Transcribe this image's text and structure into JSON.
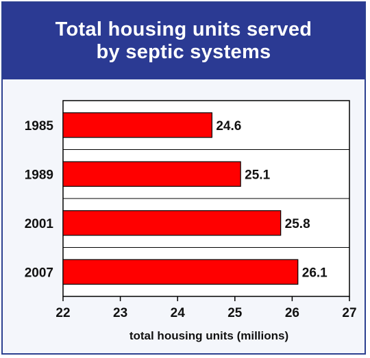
{
  "header": {
    "title_line1": "Total housing units served",
    "title_line2": "by septic systems"
  },
  "colors": {
    "header_bg": "#2b3a93",
    "bar_fill": "#ff0000",
    "bar_stroke": "#000000",
    "grid": "#000000"
  },
  "chart_data": {
    "type": "bar",
    "orientation": "horizontal",
    "title": "Total housing units served by septic systems",
    "categories": [
      "1985",
      "1989",
      "2001",
      "2007"
    ],
    "values": [
      24.6,
      25.1,
      25.8,
      26.1
    ],
    "value_labels": [
      "24.6",
      "25.1",
      "25.8",
      "26.1"
    ],
    "xlabel": "total housing units (millions)",
    "ylabel": "",
    "xlim": [
      22,
      27
    ],
    "xticks": [
      "22",
      "23",
      "24",
      "25",
      "26",
      "27"
    ],
    "grid": "horizontal separators between categories"
  }
}
